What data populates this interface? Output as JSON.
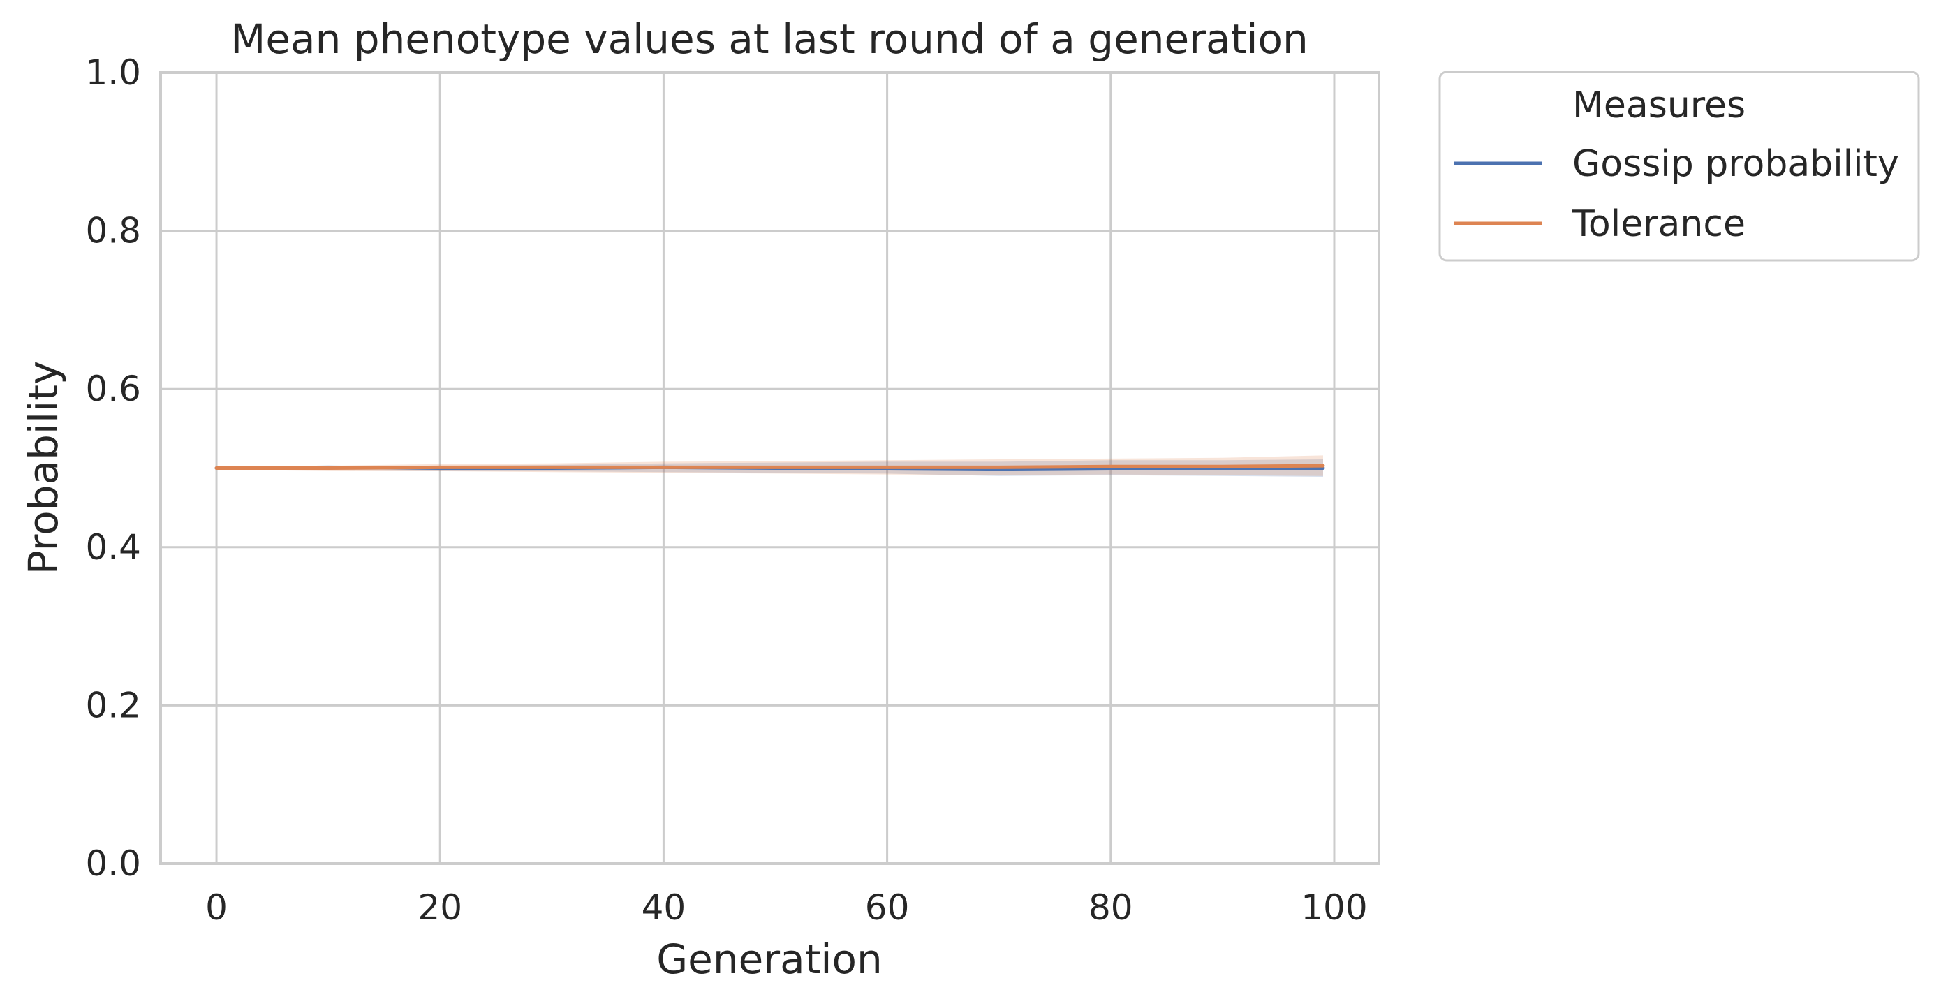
{
  "chart_data": {
    "type": "line",
    "title": "Mean phenotype values at last round of a generation",
    "xlabel": "Generation",
    "ylabel": "Probability",
    "xlim": [
      -5,
      104
    ],
    "ylim": [
      0.0,
      1.0
    ],
    "xticks": [
      0,
      20,
      40,
      60,
      80,
      100
    ],
    "yticks": [
      0.0,
      0.2,
      0.4,
      0.6,
      0.8,
      1.0
    ],
    "xtick_labels": [
      "0",
      "20",
      "40",
      "60",
      "80",
      "100"
    ],
    "ytick_labels": [
      "0.0",
      "0.2",
      "0.4",
      "0.6",
      "0.8",
      "1.0"
    ],
    "grid": true,
    "legend": {
      "title": "Measures",
      "placement": "outside-right-top"
    },
    "x": [
      0,
      10,
      20,
      30,
      40,
      50,
      60,
      70,
      80,
      90,
      99
    ],
    "series": [
      {
        "name": "Gossip probability",
        "color": "#4c72b0",
        "values": [
          0.5,
          0.501,
          0.5,
          0.5,
          0.501,
          0.5,
          0.5,
          0.499,
          0.5,
          0.5,
          0.5
        ],
        "ci_lower": [
          0.499,
          0.498,
          0.497,
          0.496,
          0.495,
          0.494,
          0.493,
          0.49,
          0.491,
          0.49,
          0.489
        ],
        "ci_upper": [
          0.501,
          0.503,
          0.503,
          0.504,
          0.506,
          0.507,
          0.508,
          0.508,
          0.51,
          0.51,
          0.511
        ]
      },
      {
        "name": "Tolerance",
        "color": "#dd8452",
        "values": [
          0.5,
          0.5,
          0.501,
          0.501,
          0.501,
          0.501,
          0.501,
          0.501,
          0.502,
          0.502,
          0.503
        ],
        "ci_lower": [
          0.499,
          0.497,
          0.496,
          0.495,
          0.494,
          0.493,
          0.492,
          0.491,
          0.492,
          0.491,
          0.49
        ],
        "ci_upper": [
          0.501,
          0.503,
          0.505,
          0.506,
          0.508,
          0.509,
          0.51,
          0.511,
          0.512,
          0.513,
          0.516
        ]
      }
    ]
  }
}
